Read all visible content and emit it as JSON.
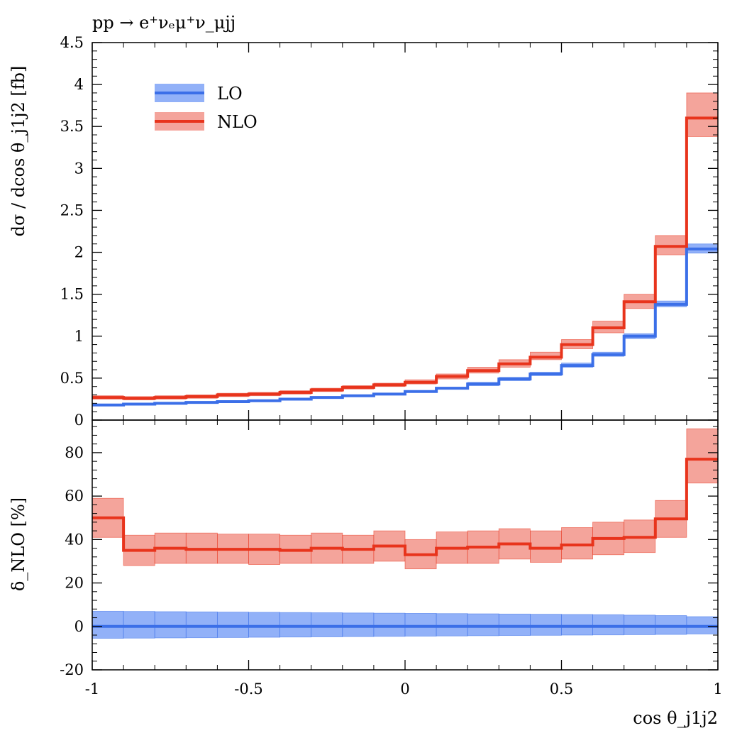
{
  "chart_data": [
    {
      "type": "line",
      "step": true,
      "title": "pp → e⁺νₑμ⁺ν_μjj",
      "xlabel": "",
      "ylabel": "dσ / dcos θ_j1j2 [fb]",
      "xlim": [
        -1,
        1
      ],
      "ylim": [
        0,
        4.5
      ],
      "grid": false,
      "legend": "top-left",
      "yticks": [
        "0",
        "0.5",
        "1",
        "1.5",
        "2",
        "2.5",
        "3",
        "3.5",
        "4",
        "4.5"
      ],
      "y_tick_values": [
        0,
        0.5,
        1,
        1.5,
        2,
        2.5,
        3,
        3.5,
        4,
        4.5
      ],
      "x_bin_edges": [
        -1,
        -0.9,
        -0.8,
        -0.7,
        -0.6,
        -0.5,
        -0.4,
        -0.3,
        -0.2,
        -0.1,
        0,
        0.1,
        0.2,
        0.3,
        0.4,
        0.5,
        0.6,
        0.7,
        0.8,
        0.9,
        1
      ],
      "series": [
        {
          "name": "LO",
          "color": "#3b6fe8",
          "band_color": "#6e97f5",
          "values": [
            0.18,
            0.19,
            0.2,
            0.21,
            0.22,
            0.23,
            0.25,
            0.27,
            0.29,
            0.31,
            0.34,
            0.38,
            0.43,
            0.49,
            0.55,
            0.65,
            0.78,
            1.0,
            1.38,
            2.04
          ],
          "band_low": [
            0.17,
            0.18,
            0.19,
            0.2,
            0.21,
            0.22,
            0.24,
            0.26,
            0.28,
            0.3,
            0.33,
            0.37,
            0.41,
            0.47,
            0.53,
            0.63,
            0.76,
            0.97,
            1.35,
            1.99
          ],
          "band_high": [
            0.19,
            0.2,
            0.21,
            0.22,
            0.23,
            0.24,
            0.26,
            0.28,
            0.3,
            0.32,
            0.35,
            0.39,
            0.45,
            0.51,
            0.57,
            0.68,
            0.81,
            1.03,
            1.42,
            2.1
          ]
        },
        {
          "name": "NLO",
          "color": "#e8341c",
          "band_color": "#f0857a",
          "values": [
            0.27,
            0.26,
            0.27,
            0.28,
            0.3,
            0.31,
            0.33,
            0.36,
            0.39,
            0.42,
            0.45,
            0.52,
            0.59,
            0.67,
            0.75,
            0.9,
            1.1,
            1.41,
            2.07,
            3.6
          ],
          "band_low": [
            0.25,
            0.24,
            0.25,
            0.26,
            0.28,
            0.29,
            0.31,
            0.34,
            0.37,
            0.4,
            0.43,
            0.49,
            0.56,
            0.63,
            0.72,
            0.85,
            1.04,
            1.33,
            1.97,
            3.38
          ],
          "band_high": [
            0.29,
            0.28,
            0.29,
            0.3,
            0.32,
            0.33,
            0.35,
            0.38,
            0.41,
            0.44,
            0.48,
            0.55,
            0.63,
            0.72,
            0.81,
            0.96,
            1.18,
            1.5,
            2.2,
            3.9
          ]
        }
      ]
    },
    {
      "type": "line",
      "step": true,
      "title": "",
      "xlabel": "cos θ_j1j2",
      "ylabel": "δ_NLO [%]",
      "xlim": [
        -1,
        1
      ],
      "ylim": [
        -20,
        95
      ],
      "grid": false,
      "xticks": [
        "-1",
        "-0.5",
        "0",
        "0.5",
        "1"
      ],
      "x_tick_values": [
        -1,
        -0.5,
        0,
        0.5,
        1
      ],
      "yticks": [
        "-20",
        "0",
        "20",
        "40",
        "60",
        "80"
      ],
      "y_tick_values": [
        -20,
        0,
        20,
        40,
        60,
        80
      ],
      "x_bin_edges": [
        -1,
        -0.9,
        -0.8,
        -0.7,
        -0.6,
        -0.5,
        -0.4,
        -0.3,
        -0.2,
        -0.1,
        0,
        0.1,
        0.2,
        0.3,
        0.4,
        0.5,
        0.6,
        0.7,
        0.8,
        0.9,
        1
      ],
      "series": [
        {
          "name": "LO",
          "color": "#3b6fe8",
          "band_color": "#6e97f5",
          "values": [
            0,
            0,
            0,
            0,
            0,
            0,
            0,
            0,
            0,
            0,
            0,
            0,
            0,
            0,
            0,
            0,
            0,
            0,
            0,
            0
          ],
          "band_low": [
            -5.5,
            -5.4,
            -5.3,
            -5.2,
            -5.1,
            -5.0,
            -4.9,
            -4.8,
            -4.7,
            -4.6,
            -4.5,
            -4.4,
            -4.3,
            -4.2,
            -4.1,
            -4.0,
            -3.9,
            -3.8,
            -3.7,
            -3.5
          ],
          "band_high": [
            7.0,
            6.9,
            6.8,
            6.7,
            6.6,
            6.5,
            6.4,
            6.3,
            6.2,
            6.1,
            6.0,
            5.9,
            5.8,
            5.7,
            5.6,
            5.5,
            5.4,
            5.2,
            5.0,
            4.5
          ]
        },
        {
          "name": "NLO",
          "color": "#e8341c",
          "band_color": "#f0857a",
          "values": [
            50,
            35,
            36,
            35.5,
            35.5,
            35.5,
            35,
            36,
            35.5,
            37,
            33,
            36,
            36.5,
            38,
            36,
            37.5,
            40.5,
            41,
            49.5,
            77
          ],
          "band_low": [
            41,
            28,
            29,
            29,
            29,
            28.5,
            29,
            29,
            29,
            30,
            26.5,
            29,
            29,
            31,
            29.5,
            31,
            33,
            34,
            41,
            66
          ],
          "band_high": [
            59,
            42,
            43,
            43,
            42.5,
            42.5,
            42,
            43,
            42,
            44,
            40,
            43.5,
            44,
            45,
            44,
            45.5,
            48,
            49,
            58,
            91
          ]
        }
      ]
    }
  ]
}
